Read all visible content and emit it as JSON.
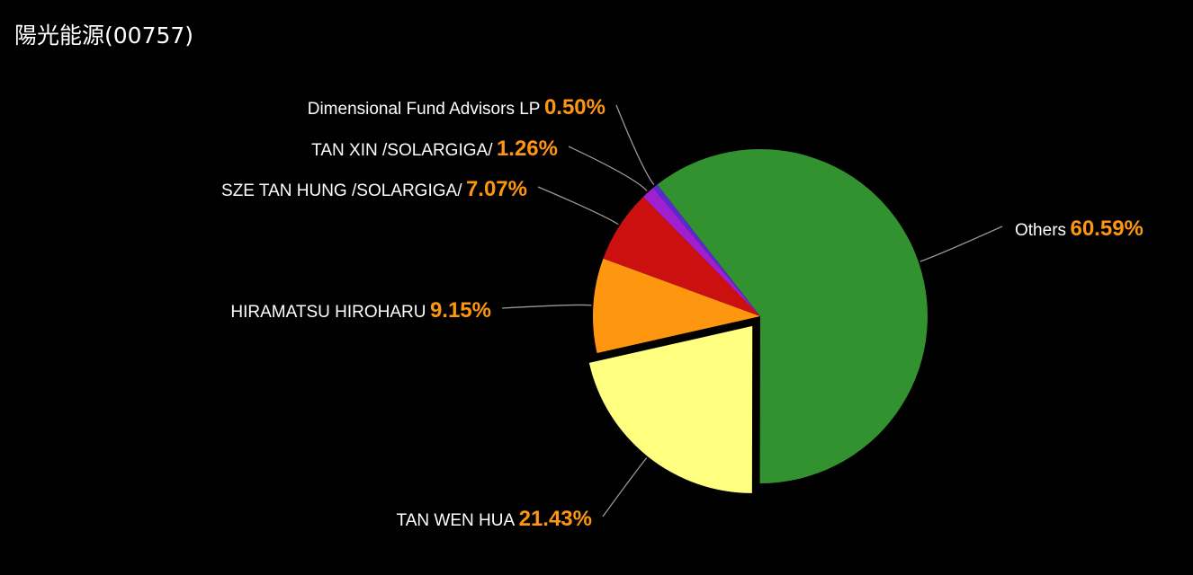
{
  "chart_data": {
    "type": "pie",
    "title": "陽光能源(00757)",
    "categories": [
      "Others",
      "TAN WEN HUA",
      "HIRAMATSU HIROHARU",
      "SZE TAN HUNG /SOLARGIGA/",
      "TAN XIN /SOLARGIGA/",
      "Dimensional Fund Advisors LP"
    ],
    "values": [
      60.59,
      21.43,
      9.15,
      7.07,
      1.26,
      0.5
    ],
    "value_labels": [
      "60.59%",
      "21.43%",
      "9.15%",
      "7.07%",
      "1.26%",
      "0.50%"
    ],
    "colors": [
      "#329230",
      "#ffff80",
      "#ff9610",
      "#cc1010",
      "#a020d0",
      "#5a2ad0"
    ],
    "exploded": [
      false,
      true,
      false,
      false,
      false,
      false
    ]
  }
}
